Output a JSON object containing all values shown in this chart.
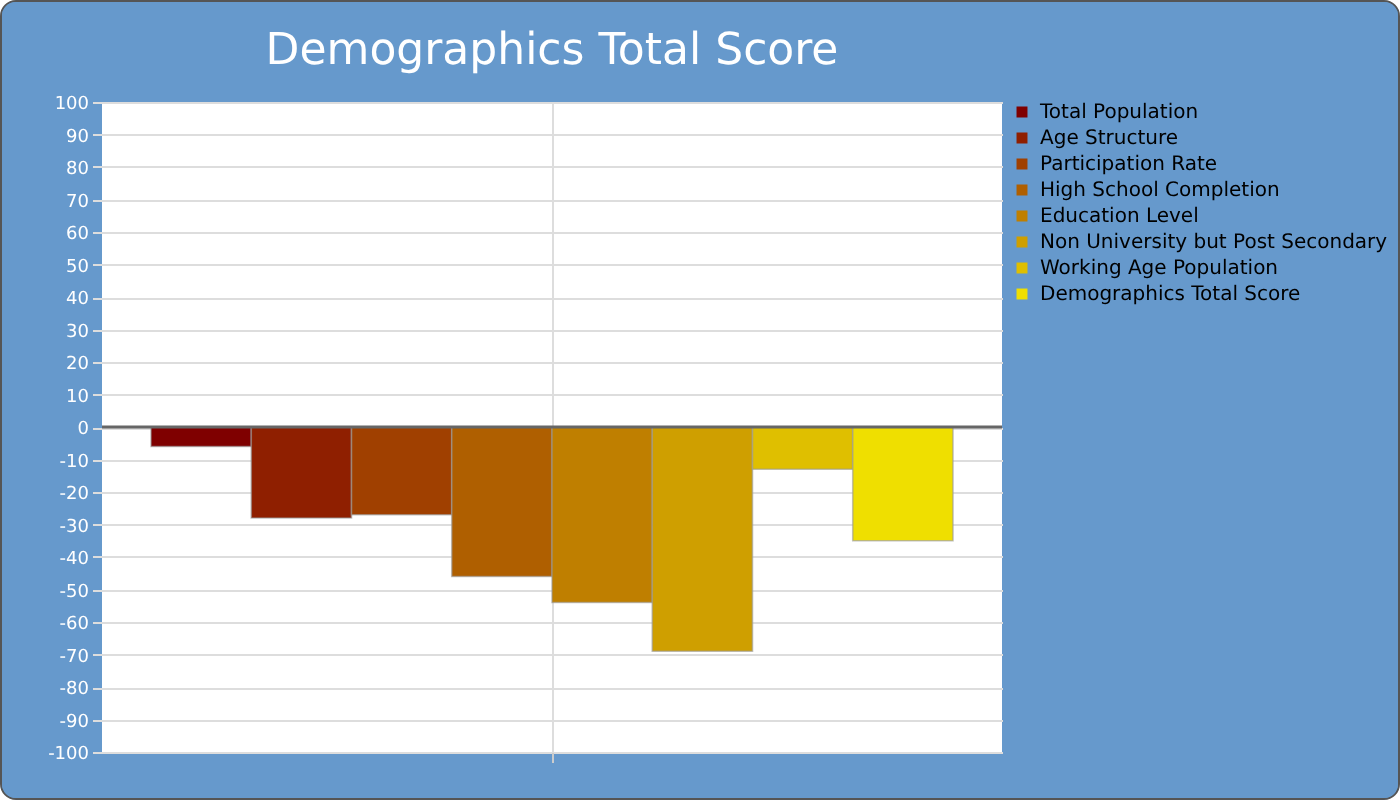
{
  "chart_data": {
    "type": "bar",
    "title": "Demographics Total Score",
    "categories": [
      null
    ],
    "series": [
      {
        "name": "Total Population",
        "color": "#7f0000",
        "values": [
          -6
        ]
      },
      {
        "name": "Age Structure",
        "color": "#8f1f00",
        "values": [
          -28
        ]
      },
      {
        "name": "Participation Rate",
        "color": "#a04000",
        "values": [
          -27
        ]
      },
      {
        "name": "High School Completion",
        "color": "#af5f00",
        "values": [
          -46
        ]
      },
      {
        "name": "Education Level",
        "color": "#bf7f00",
        "values": [
          -54
        ]
      },
      {
        "name": "Non University but Post Secondary",
        "color": "#cf9f00",
        "values": [
          -69
        ]
      },
      {
        "name": "Working Age Population",
        "color": "#dfbf00",
        "values": [
          -13
        ]
      },
      {
        "name": "Demographics Total Score",
        "color": "#efdf00",
        "values": [
          -35
        ]
      }
    ],
    "ylim": [
      -100,
      100
    ],
    "yticks": [
      -100,
      -90,
      -80,
      -70,
      -60,
      -50,
      -40,
      -30,
      -20,
      -10,
      0,
      10,
      20,
      30,
      40,
      50,
      60,
      70,
      80,
      90,
      100
    ],
    "ref_lines": [
      {
        "axis": "y",
        "value": 0,
        "color": "#666666"
      }
    ],
    "grid": true,
    "legend": "right"
  }
}
